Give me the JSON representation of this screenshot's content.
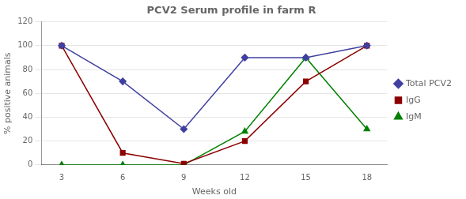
{
  "chart_data": {
    "type": "line",
    "title": "PCV2 Serum profile in farm R",
    "xlabel": "Weeks old",
    "ylabel": "% positive animals",
    "x": [
      3,
      6,
      9,
      12,
      15,
      18
    ],
    "series": [
      {
        "name": "Total PCV2",
        "color": "#4040A0",
        "marker": "diamond",
        "values": [
          100,
          70,
          30,
          90,
          90,
          100
        ]
      },
      {
        "name": "IgG",
        "color": "#8B0000",
        "marker": "square",
        "values": [
          100,
          10,
          1,
          20,
          70,
          100
        ]
      },
      {
        "name": "IgM",
        "color": "#008000",
        "marker": "triangle",
        "values": [
          0,
          0,
          0,
          28,
          90,
          30
        ]
      }
    ],
    "xlim": [
      2,
      19
    ],
    "xticks": [
      3,
      6,
      9,
      12,
      15,
      18
    ],
    "ylim": [
      0,
      120
    ],
    "yticks": [
      0,
      20,
      40,
      60,
      80,
      100,
      120
    ],
    "grid": "y",
    "legend": "right"
  }
}
